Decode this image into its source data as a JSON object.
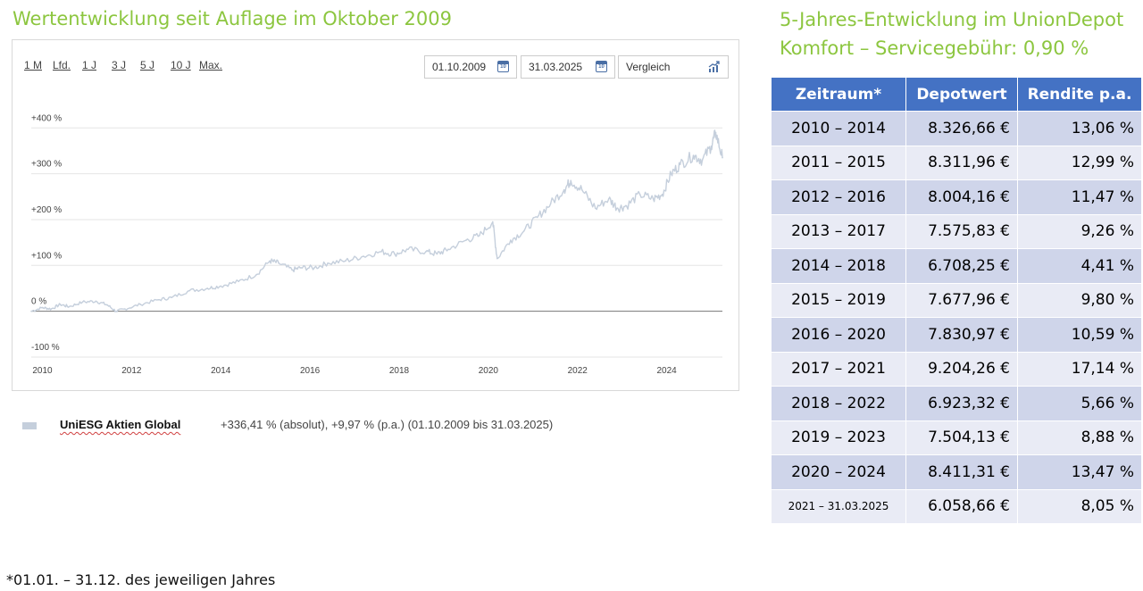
{
  "left_title": "Wertentwicklung seit Auflage im Oktober 2009",
  "right_title_line1": "5-Jahres-Entwicklung im UnionDepot",
  "right_title_line2": "Komfort – Servicegebühr: 0,90 %",
  "chart_controls": {
    "ranges": [
      "1 M",
      "Lfd.",
      "1 J",
      "3 J",
      "5 J",
      "10 J",
      "Max."
    ],
    "date_from": "01.10.2009",
    "date_to": "31.03.2025",
    "calendar_icon_text": "10",
    "compare_label": "Vergleich",
    "icons": {
      "calendar": "calendar-icon",
      "compare": "chart-compare-icon"
    }
  },
  "chart_data": {
    "type": "line",
    "title": "",
    "xlabel": "",
    "ylabel": "",
    "y_tick_labels": [
      "+400 %",
      "+300 %",
      "+200 %",
      "+100 %",
      "0 %",
      "-100 %"
    ],
    "y_ticks": [
      400,
      300,
      200,
      100,
      0,
      -100
    ],
    "x_tick_labels": [
      "2010",
      "2012",
      "2014",
      "2016",
      "2018",
      "2020",
      "2022",
      "2024"
    ],
    "x_ticks": [
      2010,
      2012,
      2014,
      2016,
      2018,
      2020,
      2022,
      2024
    ],
    "xlim": [
      2009.75,
      2025.25
    ],
    "ylim": [
      -100,
      420
    ],
    "grid": true,
    "series": [
      {
        "name": "UniESG Aktien Global",
        "color": "#c5cfdc",
        "x": [
          2009.75,
          2010.0,
          2010.2,
          2010.4,
          2010.6,
          2010.9,
          2011.2,
          2011.45,
          2011.65,
          2011.85,
          2012.2,
          2012.6,
          2012.9,
          2013.3,
          2013.7,
          2014.0,
          2014.4,
          2014.8,
          2015.1,
          2015.3,
          2015.6,
          2015.8,
          2016.1,
          2016.4,
          2016.8,
          2017.2,
          2017.6,
          2017.9,
          2018.2,
          2018.6,
          2018.85,
          2019.1,
          2019.5,
          2019.8,
          2020.1,
          2020.2,
          2020.5,
          2020.8,
          2021.1,
          2021.4,
          2021.7,
          2021.85,
          2022.1,
          2022.4,
          2022.7,
          2022.9,
          2023.1,
          2023.4,
          2023.7,
          2023.9,
          2024.1,
          2024.3,
          2024.6,
          2024.8,
          2025.0,
          2025.1,
          2025.25
        ],
        "y": [
          0,
          8,
          5,
          15,
          10,
          20,
          22,
          14,
          0,
          5,
          15,
          25,
          30,
          45,
          50,
          55,
          65,
          80,
          110,
          105,
          90,
          95,
          95,
          105,
          110,
          120,
          130,
          125,
          135,
          130,
          125,
          135,
          155,
          165,
          195,
          115,
          155,
          175,
          205,
          235,
          265,
          285,
          265,
          225,
          245,
          225,
          230,
          255,
          245,
          255,
          300,
          320,
          340,
          330,
          360,
          390,
          335
        ]
      }
    ]
  },
  "legend": {
    "name": "UniESG Aktien Global",
    "performance": "+336,41 % (absolut), +9,97 % (p.a.) (01.10.2009 bis 31.03.2025)"
  },
  "table": {
    "headers": [
      "Zeitraum*",
      "Depotwert",
      "Rendite p.a."
    ],
    "header_color": "#4472c4",
    "rows": [
      [
        "2010 – 2014",
        "8.326,66 €",
        "13,06 %"
      ],
      [
        "2011 – 2015",
        "8.311,96 €",
        "12,99 %"
      ],
      [
        "2012 – 2016",
        "8.004,16 €",
        "11,47 %"
      ],
      [
        "2013 – 2017",
        "7.575,83 €",
        "9,26 %"
      ],
      [
        "2014 – 2018",
        "6.708,25 €",
        "4,41 %"
      ],
      [
        "2015 – 2019",
        "7.677,96 €",
        "9,80 %"
      ],
      [
        "2016 – 2020",
        "7.830,97 €",
        "10,59 %"
      ],
      [
        "2017 – 2021",
        "9.204,26 €",
        "17,14 %"
      ],
      [
        "2018 – 2022",
        "6.923,32 €",
        "5,66 %"
      ],
      [
        "2019 – 2023",
        "7.504,13 €",
        "8,88 %"
      ],
      [
        "2020 – 2024",
        "8.411,31 €",
        "13,47 %"
      ],
      [
        "2021 – 31.03.2025",
        "6.058,66 €",
        "8,05 %"
      ]
    ]
  },
  "footnote": "*01.01. – 31.12. des jeweiligen Jahres"
}
